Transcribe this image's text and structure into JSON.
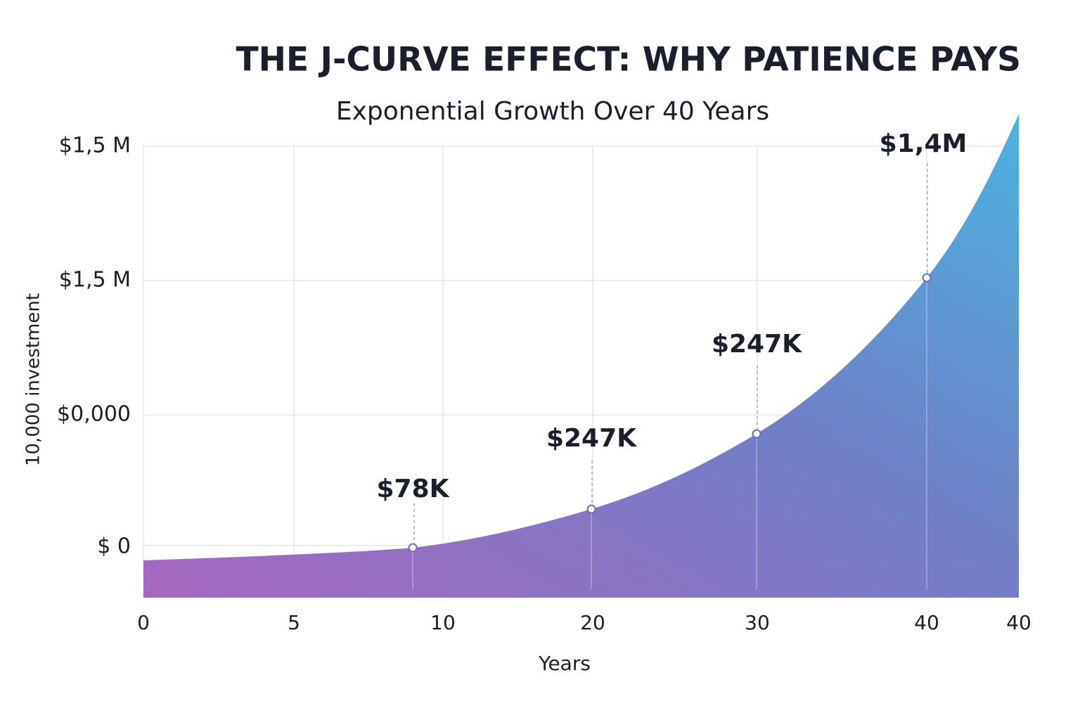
{
  "title": "THE J-CURVE EFFECT: WHY PATIENCE PAYS",
  "subtitle": "Exponential Growth Over 40 Years",
  "y_axis_title": "10,000 investment",
  "x_axis_title": "Years",
  "y_axis_labels": [
    "$1,5 M",
    "$1,5 M",
    "$0,000",
    "$ 0"
  ],
  "x_axis_labels": [
    "0",
    "5",
    "10",
    "20",
    "30",
    "40",
    "40"
  ],
  "annotations": [
    "$78K",
    "$247K",
    "$247K",
    "$1,4M"
  ]
}
